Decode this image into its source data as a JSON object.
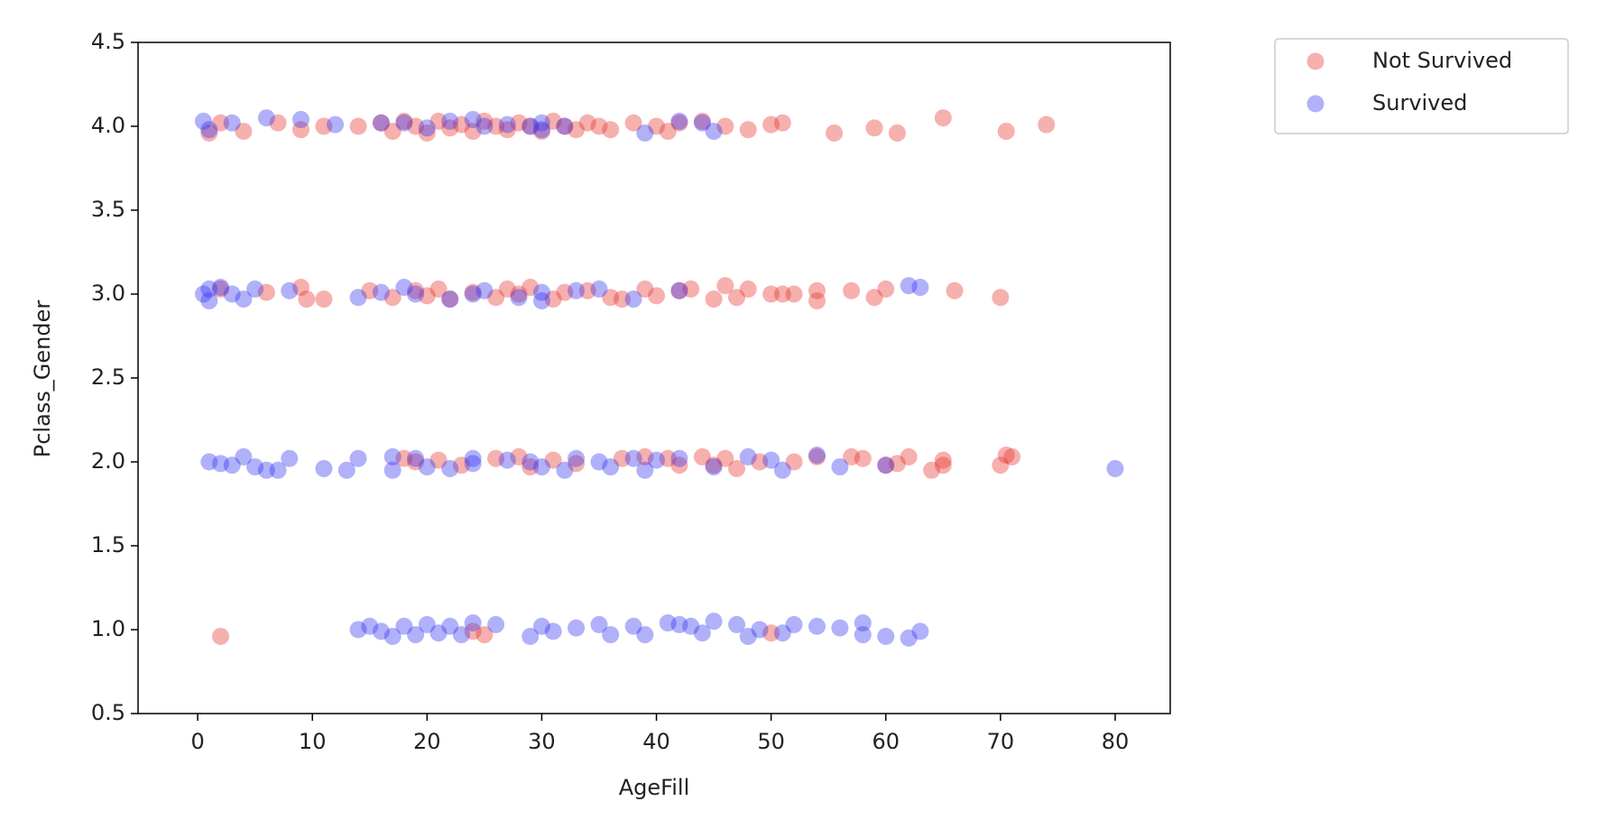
{
  "chart_data": {
    "type": "scatter",
    "x_label": "AgeFill",
    "y_label": "Pclass_Gender",
    "xlim": [
      -5.2,
      84.8
    ],
    "ylim": [
      0.5,
      4.5
    ],
    "xticks": [
      0,
      10,
      20,
      30,
      40,
      50,
      60,
      70,
      80
    ],
    "yticks": [
      0.5,
      {
        "value": 1,
        "label": "1.0"
      },
      1.5,
      {
        "value": 2,
        "label": "2.0"
      },
      2.5,
      {
        "value": 3,
        "label": "3.0"
      },
      3.5,
      {
        "value": 4,
        "label": "4.0"
      },
      4.5
    ],
    "grid": false,
    "legend_position": "outside-upper-right",
    "series": [
      {
        "name": "Not Survived",
        "color": "#e8302a",
        "x": [
          1,
          2,
          4,
          7,
          9,
          11,
          14,
          16,
          17,
          18,
          19,
          20,
          21,
          22,
          23,
          24,
          25,
          26,
          27,
          28,
          29,
          30,
          31,
          32,
          33,
          34,
          35,
          36,
          38,
          40,
          41,
          42,
          44,
          46,
          48,
          50,
          51,
          55.5,
          59,
          61,
          65,
          70.5,
          74,
          2,
          6,
          9,
          9.5,
          11,
          15,
          17,
          19,
          20,
          21,
          22,
          24,
          26,
          27,
          28,
          29,
          31,
          32,
          34,
          36,
          37,
          39,
          40,
          42,
          43,
          45,
          46,
          47,
          48,
          50,
          51,
          52,
          54,
          54,
          57,
          59,
          60,
          66,
          70,
          18,
          19,
          21,
          23,
          26,
          28,
          29,
          31,
          33,
          37,
          39,
          41,
          42,
          44,
          45,
          46,
          47,
          49,
          52,
          54,
          57,
          58,
          60,
          61,
          62,
          64,
          65,
          65,
          70,
          71,
          70.5,
          2,
          24,
          25,
          50
        ],
        "values": [
          3.96,
          4.02,
          3.97,
          4.02,
          3.98,
          4.0,
          4.0,
          4.02,
          3.97,
          4.03,
          4.0,
          3.96,
          4.03,
          3.99,
          4.01,
          3.97,
          4.03,
          4.0,
          3.98,
          4.02,
          4.0,
          3.97,
          4.03,
          4.0,
          3.98,
          4.02,
          4.0,
          3.98,
          4.02,
          4.0,
          3.97,
          4.02,
          4.03,
          4.0,
          3.98,
          4.01,
          4.02,
          3.96,
          3.99,
          3.96,
          4.05,
          3.97,
          4.01,
          3.03,
          3.01,
          3.04,
          2.97,
          2.97,
          3.02,
          2.98,
          3.02,
          2.99,
          3.03,
          2.97,
          3.01,
          2.98,
          3.03,
          3.0,
          3.04,
          2.97,
          3.01,
          3.02,
          2.98,
          2.97,
          3.03,
          2.99,
          3.02,
          3.03,
          2.97,
          3.05,
          2.98,
          3.03,
          3.0,
          3.0,
          3.0,
          3.02,
          2.96,
          3.02,
          2.98,
          3.03,
          3.02,
          2.98,
          2.02,
          2.0,
          2.01,
          1.98,
          2.02,
          2.03,
          1.97,
          2.01,
          1.99,
          2.02,
          2.03,
          2.02,
          1.98,
          2.03,
          1.98,
          2.02,
          1.96,
          2.0,
          2.0,
          2.03,
          2.03,
          2.02,
          1.98,
          1.99,
          2.03,
          1.95,
          2.01,
          1.98,
          1.98,
          2.03,
          2.04,
          0.96,
          0.99,
          0.97,
          0.98
        ]
      },
      {
        "name": "Survived",
        "color": "#3333f2",
        "x": [
          0.5,
          1,
          3,
          6,
          9,
          12,
          16,
          18,
          20,
          22,
          24,
          25,
          27,
          29,
          30,
          30,
          32,
          39,
          42,
          44,
          45,
          0.5,
          1,
          1,
          2,
          3,
          4,
          5,
          8,
          14,
          16,
          18,
          19,
          22,
          24,
          25,
          28,
          30,
          30,
          33,
          35,
          38,
          42,
          62,
          63,
          1,
          2,
          3,
          4,
          5,
          6,
          7,
          8,
          11,
          13,
          14,
          17,
          17,
          19,
          20,
          22,
          24,
          24,
          27,
          29,
          30,
          32,
          33,
          35,
          36,
          38,
          39,
          40,
          42,
          45,
          48,
          50,
          51,
          54,
          56,
          60,
          80,
          14,
          15,
          16,
          17,
          18,
          19,
          20,
          21,
          22,
          23,
          24,
          26,
          29,
          30,
          31,
          33,
          35,
          36,
          38,
          39,
          41,
          42,
          43,
          44,
          45,
          47,
          48,
          49,
          51,
          52,
          54,
          56,
          58,
          58,
          60,
          62,
          63
        ],
        "values": [
          4.03,
          3.98,
          4.02,
          4.05,
          4.04,
          4.01,
          4.02,
          4.02,
          3.99,
          4.03,
          4.04,
          4.0,
          4.01,
          4.0,
          4.02,
          3.98,
          4.0,
          3.96,
          4.03,
          4.02,
          3.97,
          3.0,
          3.03,
          2.96,
          3.04,
          3.0,
          2.97,
          3.03,
          3.02,
          2.98,
          3.01,
          3.04,
          3.0,
          2.97,
          3.0,
          3.02,
          2.98,
          3.01,
          2.96,
          3.02,
          3.03,
          2.97,
          3.02,
          3.05,
          3.04,
          2.0,
          1.99,
          1.98,
          2.03,
          1.97,
          1.95,
          1.95,
          2.02,
          1.96,
          1.95,
          2.02,
          2.03,
          1.95,
          2.02,
          1.97,
          1.96,
          2.02,
          1.99,
          2.01,
          2.0,
          1.97,
          1.95,
          2.02,
          2.0,
          1.97,
          2.02,
          1.95,
          2.01,
          2.02,
          1.97,
          2.03,
          2.01,
          1.95,
          2.04,
          1.97,
          1.98,
          1.96,
          1.0,
          1.02,
          0.99,
          0.96,
          1.02,
          0.97,
          1.03,
          0.98,
          1.02,
          0.97,
          1.04,
          1.03,
          0.96,
          1.02,
          0.99,
          1.01,
          1.03,
          0.97,
          1.02,
          0.97,
          1.04,
          1.03,
          1.02,
          0.98,
          1.05,
          1.03,
          0.96,
          1.0,
          0.98,
          1.03,
          1.02,
          1.01,
          1.04,
          0.97,
          0.96,
          0.95,
          0.99
        ]
      }
    ]
  }
}
